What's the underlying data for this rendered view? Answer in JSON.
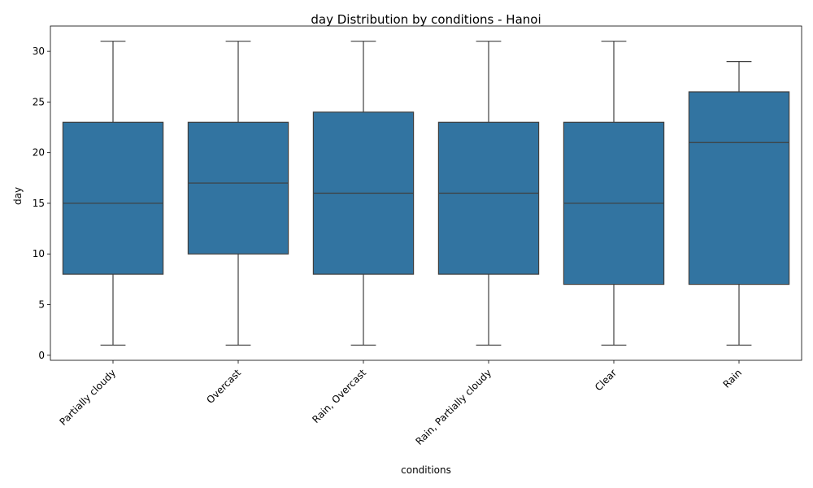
{
  "chart_data": {
    "type": "box",
    "title": "day Distribution by conditions - Hanoi",
    "xlabel": "conditions",
    "ylabel": "day",
    "ylim": [
      -0.5,
      32.5
    ],
    "yticks": [
      0,
      5,
      10,
      15,
      20,
      25,
      30
    ],
    "grid": false,
    "legend": "none",
    "box_color": "#3274a1",
    "line_color": "#3f3f3f",
    "categories": [
      "Partially cloudy",
      "Overcast",
      "Rain, Overcast",
      "Rain, Partially cloudy",
      "Clear",
      "Rain"
    ],
    "boxes": [
      {
        "category": "Partially cloudy",
        "min": 1,
        "q1": 8,
        "median": 15,
        "q3": 23,
        "max": 31
      },
      {
        "category": "Overcast",
        "min": 1,
        "q1": 10,
        "median": 17,
        "q3": 23,
        "max": 31
      },
      {
        "category": "Rain, Overcast",
        "min": 1,
        "q1": 8,
        "median": 16,
        "q3": 24,
        "max": 31
      },
      {
        "category": "Rain, Partially cloudy",
        "min": 1,
        "q1": 8,
        "median": 16,
        "q3": 23,
        "max": 31
      },
      {
        "category": "Clear",
        "min": 1,
        "q1": 7,
        "median": 15,
        "q3": 23,
        "max": 31
      },
      {
        "category": "Rain",
        "min": 1,
        "q1": 7,
        "median": 21,
        "q3": 26,
        "max": 29
      }
    ]
  }
}
